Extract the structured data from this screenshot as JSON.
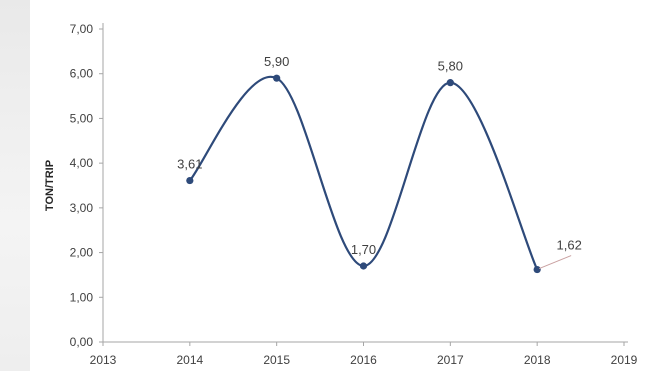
{
  "chart_data": {
    "type": "line",
    "title": "",
    "xlabel": "",
    "ylabel": "TON/TRIP",
    "x_ticks": [
      "2013",
      "2014",
      "2015",
      "2016",
      "2017",
      "2018",
      "2019"
    ],
    "y_ticks": [
      "0,00",
      "1,00",
      "2,00",
      "3,00",
      "4,00",
      "5,00",
      "6,00",
      "7,00"
    ],
    "xlim": [
      2013,
      2019
    ],
    "ylim": [
      0,
      7
    ],
    "grid": false,
    "legend": "none",
    "smooth": true,
    "series": [
      {
        "x": [
          2014,
          2015,
          2016,
          2017,
          2018
        ],
        "values": [
          3.61,
          5.9,
          1.7,
          5.8,
          1.62
        ],
        "labels": [
          "3,61",
          "5,90",
          "1,70",
          "5,80",
          "1,62"
        ],
        "color": "#2e4a7a"
      }
    ]
  }
}
